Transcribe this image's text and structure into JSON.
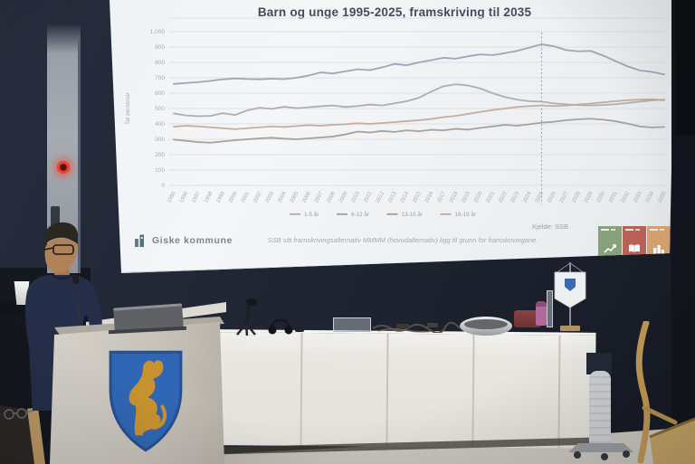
{
  "chart_data": {
    "type": "line",
    "title": "Barn og unge 1995-2025, framskriving til 2035",
    "ylabel": "Tal personar",
    "xlabel": "",
    "ylim": [
      0,
      1000
    ],
    "ytick_step": 100,
    "grid": true,
    "legend_position": "bottom",
    "projection_divider_x": 2025,
    "x": [
      1995,
      1996,
      1997,
      1998,
      1999,
      2000,
      2001,
      2002,
      2003,
      2004,
      2005,
      2006,
      2007,
      2008,
      2009,
      2010,
      2011,
      2012,
      2013,
      2014,
      2015,
      2016,
      2017,
      2018,
      2019,
      2020,
      2021,
      2022,
      2023,
      2024,
      2025,
      2026,
      2027,
      2028,
      2029,
      2030,
      2031,
      2032,
      2033,
      2034,
      2035
    ],
    "series": [
      {
        "name": "1-5 år",
        "color": "#aaa9b0",
        "values": [
          468,
          455,
          450,
          452,
          470,
          458,
          488,
          505,
          498,
          512,
          502,
          508,
          515,
          520,
          510,
          516,
          526,
          520,
          534,
          548,
          570,
          610,
          645,
          658,
          650,
          630,
          600,
          575,
          558,
          548,
          545,
          534,
          527,
          522,
          520,
          523,
          528,
          536,
          545,
          553,
          558
        ]
      },
      {
        "name": "6-12 år",
        "color": "#99a2b3",
        "values": [
          660,
          666,
          672,
          680,
          690,
          696,
          692,
          690,
          694,
          691,
          700,
          715,
          735,
          728,
          742,
          755,
          750,
          768,
          790,
          782,
          800,
          815,
          830,
          824,
          840,
          852,
          848,
          860,
          875,
          896,
          918,
          905,
          880,
          872,
          875,
          845,
          810,
          775,
          748,
          738,
          722
        ]
      },
      {
        "name": "13-15 år",
        "color": "#a59b93",
        "values": [
          298,
          290,
          282,
          278,
          286,
          294,
          300,
          306,
          310,
          304,
          300,
          306,
          312,
          318,
          332,
          350,
          344,
          354,
          348,
          358,
          352,
          362,
          358,
          368,
          363,
          374,
          384,
          394,
          388,
          398,
          408,
          414,
          424,
          430,
          434,
          428,
          418,
          402,
          384,
          377,
          380
        ]
      },
      {
        "name": "16-19 år",
        "color": "#c5a69c",
        "values": [
          382,
          388,
          384,
          378,
          372,
          366,
          372,
          378,
          384,
          380,
          386,
          392,
          388,
          394,
          398,
          404,
          400,
          406,
          412,
          418,
          424,
          432,
          444,
          452,
          465,
          478,
          490,
          500,
          510,
          516,
          520,
          516,
          520,
          526,
          532,
          540,
          548,
          554,
          558,
          560,
          554
        ]
      }
    ]
  },
  "slide": {
    "logo_text": "Giske kommune",
    "footnote": "SSB sitt framskrivingsalternativ MMMM (hovudalternativ) ligg til grunn for framskrivingane.",
    "source_label": "Kjelde: SSB",
    "sdg_tiles": [
      {
        "name": "sdg-tile-green",
        "color": "#87a17c",
        "icon": "growth-chart-icon"
      },
      {
        "name": "sdg-tile-red",
        "color": "#ba6157",
        "icon": "open-book-icon"
      },
      {
        "name": "sdg-tile-orange",
        "color": "#d9a370",
        "icon": "buildings-icon"
      }
    ]
  },
  "room": {
    "colors": {
      "wall": "#202634",
      "screen_white": "#f2f4f7",
      "shield_blue": "#2f66b5",
      "lion_gold": "#c8922f",
      "alarm_red": "#e03a2a",
      "chair_wood": "#c49a58"
    }
  }
}
